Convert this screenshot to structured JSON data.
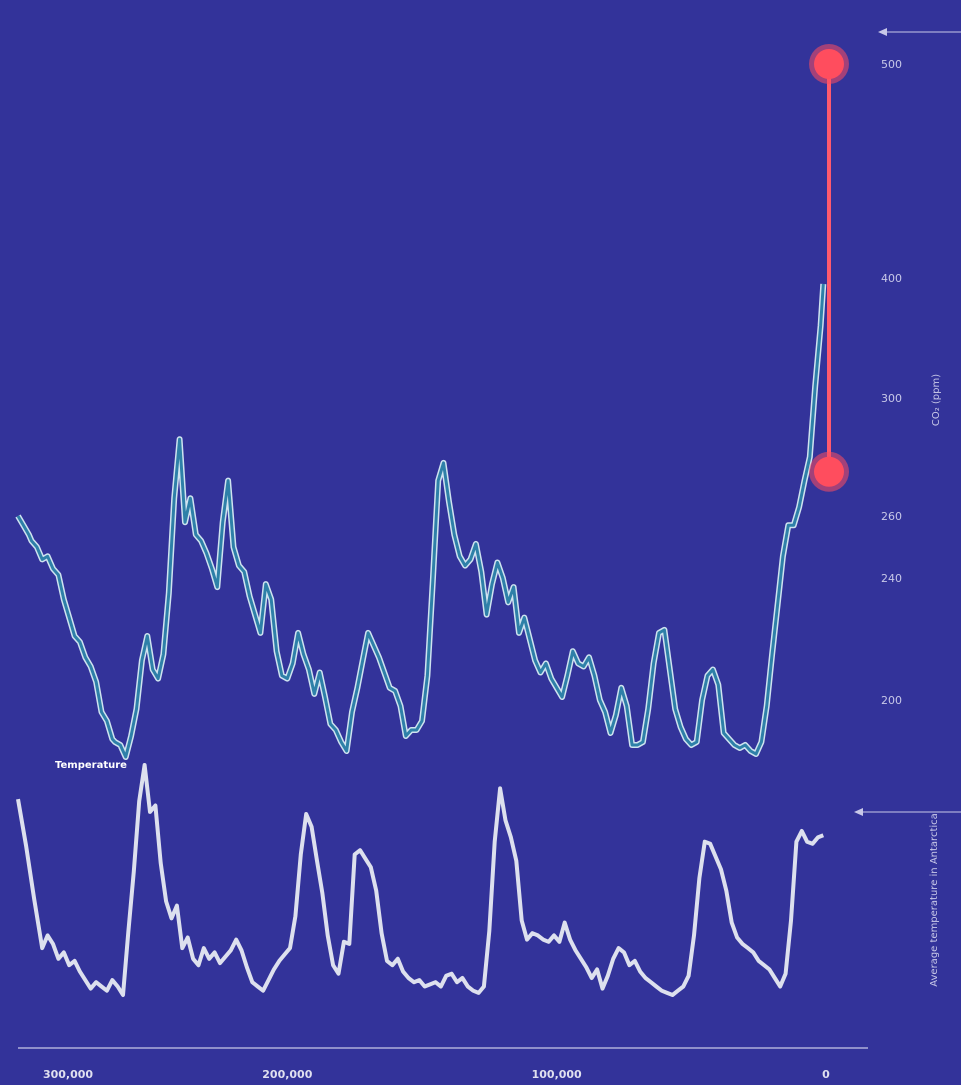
{
  "chart_data": {
    "type": "line",
    "xlim": [
      300000,
      0
    ],
    "x_ticks": [
      {
        "value": 300000,
        "label": "300,000"
      },
      {
        "value": 200000,
        "label": "200,000"
      },
      {
        "value": 100000,
        "label": "100,000"
      },
      {
        "value": 0,
        "label": "0"
      }
    ],
    "y_right_label": "CO₂ (ppm)",
    "y_right_ticks": [
      {
        "value": 200,
        "label": "200"
      },
      {
        "value": 240,
        "label": "240"
      },
      {
        "value": 260,
        "label": "260"
      },
      {
        "value": 300,
        "label": "300"
      },
      {
        "value": 400,
        "label": "400"
      },
      {
        "value": 500,
        "label": "500"
      }
    ],
    "temperature_axis_label": "Average temperature in Antarctica",
    "series": [
      {
        "name": "",
        "unit": "ppm",
        "color": "#2e80a8",
        "outline": "#cfe3f0",
        "x": [
          300000,
          298000,
          296000,
          295000,
          293000,
          291000,
          289000,
          287000,
          285000,
          283000,
          281000,
          279000,
          277000,
          275000,
          273000,
          271000,
          269000,
          267000,
          265000,
          264000,
          262000,
          260000,
          258000,
          256000,
          254000,
          252000,
          250000,
          248000,
          246000,
          244000,
          242000,
          240000,
          238000,
          236000,
          234000,
          232000,
          230000,
          228000,
          226000,
          224000,
          222000,
          220000,
          218000,
          216000,
          214000,
          212000,
          210000,
          208000,
          206000,
          204000,
          202000,
          200000,
          198000,
          196000,
          194000,
          192000,
          190000,
          188000,
          186000,
          184000,
          182000,
          180000,
          178000,
          176000,
          174000,
          172000,
          170000,
          168000,
          166000,
          164000,
          162000,
          160000,
          158000,
          156000,
          154000,
          152000,
          150000,
          148000,
          146000,
          144000,
          142000,
          140000,
          138000,
          136000,
          134000,
          132000,
          130000,
          128000,
          126000,
          124000,
          122000,
          120000,
          118000,
          116000,
          114000,
          112000,
          110000,
          108000,
          106000,
          104000,
          102000,
          100000,
          98000,
          96000,
          94000,
          92000,
          90000,
          88000,
          86000,
          84000,
          82000,
          80000,
          78000,
          76000,
          74000,
          72000,
          70000,
          68000,
          66000,
          64000,
          62000,
          60000,
          58000,
          56000,
          54000,
          52000,
          50000,
          48000,
          46000,
          44000,
          42000,
          40000,
          38000,
          36000,
          34000,
          32000,
          30000,
          28000,
          26000,
          24000,
          22000,
          20000,
          18000,
          16000,
          14000,
          12000,
          10000,
          8000,
          6000,
          4000,
          2000,
          1000
        ],
        "values": [
          260,
          257,
          254,
          252,
          250,
          246,
          247,
          243,
          241,
          233,
          227,
          221,
          219,
          214,
          211,
          206,
          196,
          193,
          187,
          186,
          185,
          181,
          188,
          197,
          213,
          221,
          210,
          207,
          215,
          235,
          266,
          286,
          258,
          266,
          254,
          252,
          248,
          243,
          237,
          258,
          272,
          250,
          244,
          242,
          234,
          228,
          222,
          238,
          233,
          216,
          208,
          207,
          212,
          222,
          215,
          210,
          202,
          209,
          201,
          192,
          190,
          186,
          183,
          196,
          204,
          213,
          222,
          218,
          214,
          209,
          204,
          203,
          198,
          188,
          190,
          190,
          193,
          208,
          239,
          272,
          278,
          265,
          254,
          247,
          244,
          246,
          251,
          242,
          228,
          238,
          245,
          240,
          232,
          237,
          222,
          227,
          220,
          213,
          209,
          212,
          207,
          204,
          201,
          208,
          216,
          212,
          211,
          214,
          208,
          200,
          196,
          189,
          195,
          204,
          198,
          185,
          185,
          186,
          197,
          212,
          222,
          223,
          210,
          197,
          191,
          187,
          185,
          186,
          200,
          208,
          210,
          205,
          189,
          187,
          185,
          184,
          185,
          183,
          182,
          186,
          198,
          215,
          231,
          247,
          257,
          257,
          263,
          272,
          280,
          310,
          360,
          395
        ]
      },
      {
        "name": "Temperature",
        "unit": "°C",
        "color": "#dde0ee",
        "x": [
          300000,
          297000,
          294000,
          291000,
          289000,
          287000,
          285000,
          283000,
          281000,
          279000,
          277000,
          275000,
          273000,
          271000,
          269000,
          267000,
          265000,
          263000,
          261000,
          259000,
          257000,
          255000,
          253000,
          251000,
          249000,
          247000,
          245000,
          243000,
          241000,
          239000,
          237000,
          235000,
          233000,
          231000,
          229000,
          227000,
          225000,
          223000,
          221000,
          219000,
          217000,
          215000,
          213000,
          211000,
          209000,
          207000,
          205000,
          203000,
          201000,
          199000,
          197000,
          195000,
          193000,
          191000,
          189000,
          187000,
          185000,
          183000,
          181000,
          179000,
          177000,
          175000,
          173000,
          171000,
          169000,
          167000,
          165000,
          163000,
          161000,
          159000,
          157000,
          155000,
          153000,
          151000,
          149000,
          147000,
          145000,
          143000,
          141000,
          139000,
          137000,
          135000,
          133000,
          131000,
          129000,
          127000,
          125000,
          123000,
          121000,
          119000,
          117000,
          115000,
          113000,
          111000,
          109000,
          107000,
          105000,
          103000,
          101000,
          99000,
          97000,
          95000,
          93000,
          91000,
          89000,
          87000,
          85000,
          83000,
          81000,
          79000,
          77000,
          75000,
          73000,
          71000,
          69000,
          67000,
          65000,
          63000,
          61000,
          59000,
          57000,
          55000,
          53000,
          51000,
          49000,
          47000,
          45000,
          43000,
          41000,
          39000,
          37000,
          35000,
          33000,
          31000,
          29000,
          27000,
          25000,
          23000,
          21000,
          19000,
          17000,
          15000,
          13000,
          11000,
          9000,
          7000,
          5000,
          3000,
          1000
        ],
        "values": [
          1.2,
          -1.0,
          -3.5,
          -5.8,
          -5.2,
          -5.6,
          -6.3,
          -6.0,
          -6.6,
          -6.4,
          -6.9,
          -7.3,
          -7.7,
          -7.4,
          -7.6,
          -7.8,
          -7.3,
          -7.6,
          -8.0,
          -5.0,
          -2.2,
          1.1,
          2.8,
          0.6,
          0.9,
          -1.8,
          -3.6,
          -4.4,
          -3.8,
          -5.8,
          -5.3,
          -6.3,
          -6.6,
          -5.8,
          -6.3,
          -6.0,
          -6.5,
          -6.2,
          -5.9,
          -5.4,
          -5.9,
          -6.7,
          -7.4,
          -7.6,
          -7.8,
          -7.3,
          -6.8,
          -6.4,
          -6.1,
          -5.8,
          -4.3,
          -1.4,
          0.5,
          -0.1,
          -1.7,
          -3.2,
          -5.2,
          -6.6,
          -7.0,
          -5.5,
          -5.6,
          -1.4,
          -1.2,
          -1.6,
          -2.0,
          -3.1,
          -5.1,
          -6.4,
          -6.6,
          -6.3,
          -6.9,
          -7.2,
          -7.4,
          -7.3,
          -7.6,
          -7.5,
          -7.4,
          -7.6,
          -7.1,
          -7.0,
          -7.4,
          -7.2,
          -7.6,
          -7.8,
          -7.9,
          -7.6,
          -5.0,
          -0.8,
          1.7,
          0.2,
          -0.6,
          -1.7,
          -4.5,
          -5.4,
          -5.1,
          -5.2,
          -5.4,
          -5.5,
          -5.2,
          -5.5,
          -4.6,
          -5.4,
          -5.9,
          -6.3,
          -6.7,
          -7.2,
          -6.8,
          -7.7,
          -7.1,
          -6.3,
          -5.8,
          -6.0,
          -6.6,
          -6.4,
          -6.9,
          -7.2,
          -7.4,
          -7.6,
          -7.8,
          -7.9,
          -8.0,
          -7.8,
          -7.6,
          -7.1,
          -5.2,
          -2.5,
          -0.8,
          -0.9,
          -1.5,
          -2.1,
          -3.1,
          -4.6,
          -5.3,
          -5.6,
          -5.8,
          -6.0,
          -6.4,
          -6.6,
          -6.8,
          -7.2,
          -7.6,
          -7.0,
          -4.5,
          -0.8,
          -0.3,
          -0.8,
          -0.9,
          -0.6,
          -0.5
        ]
      }
    ],
    "annotations": [
      {
        "label": "",
        "x": 0,
        "value": 500
      },
      {
        "label": "",
        "x": 0,
        "value": 275
      }
    ]
  },
  "colors": {
    "background": "#33339a",
    "co2_line": "#2e80a8",
    "co2_outline": "#cfe3f0",
    "temperature_line": "#dde0ee",
    "projection_line": "#ff5a6e",
    "projection_marker": "#ff4d5e",
    "axis": "#c8c8e8"
  }
}
